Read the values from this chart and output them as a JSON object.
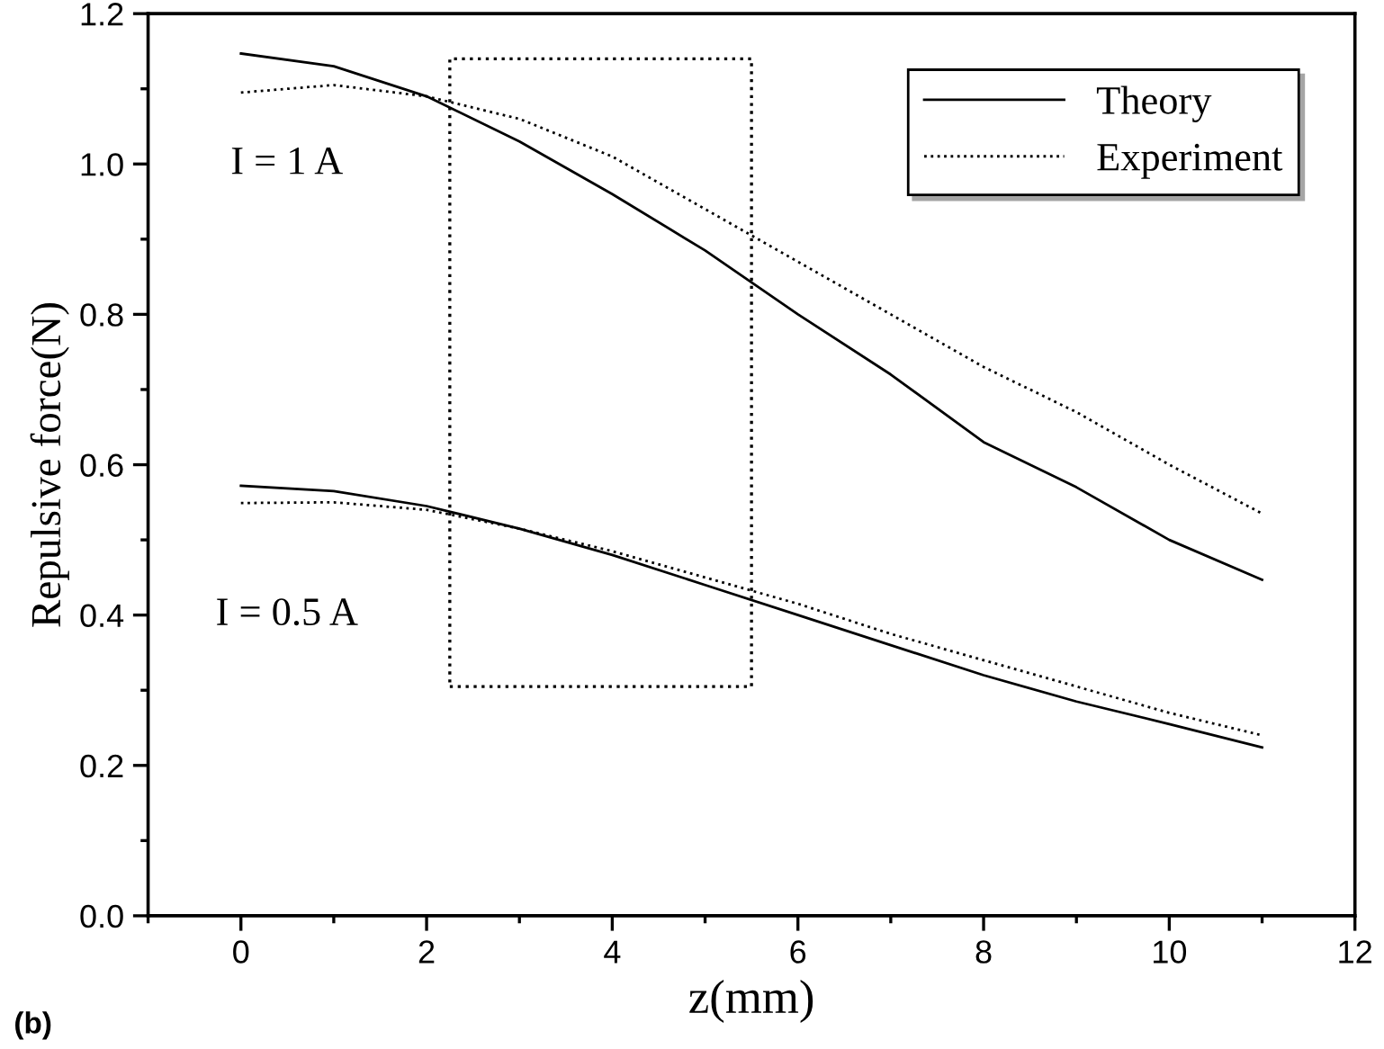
{
  "chart_data": {
    "type": "line",
    "xlabel": "z(mm)",
    "ylabel": "Repulsive force(N)",
    "xlim": [
      -1,
      12
    ],
    "xticks": [
      0,
      2,
      4,
      6,
      8,
      10,
      12
    ],
    "ylim": [
      0,
      1.2
    ],
    "yticks": [
      {
        "value": 0,
        "label": "0.0"
      },
      {
        "value": 0.2,
        "label": "0.2"
      },
      {
        "value": 0.4,
        "label": "0.4"
      },
      {
        "value": 0.6,
        "label": "0.6"
      },
      {
        "value": 0.8,
        "label": "0.8"
      },
      {
        "value": 1.0,
        "label": "1.0"
      },
      {
        "value": 1.2,
        "label": "1.2"
      }
    ],
    "x": [
      0,
      1,
      2,
      3,
      4,
      5,
      6,
      7,
      8,
      9,
      10,
      11
    ],
    "series": [
      {
        "name": "Theory",
        "color": "#000000",
        "line_style": "solid",
        "values": [
          1.147,
          1.13,
          1.09,
          1.03,
          0.96,
          0.885,
          0.8,
          0.72,
          0.63,
          0.57,
          0.5,
          0.447
        ]
      },
      {
        "name": "Experiment",
        "color": "#000000",
        "line_style": "dotted",
        "values": [
          1.095,
          1.105,
          1.09,
          1.06,
          1.01,
          0.94,
          0.87,
          0.8,
          0.73,
          0.67,
          0.6,
          0.535
        ]
      },
      {
        "color": "#000000",
        "line_style": "solid",
        "values": [
          0.572,
          0.565,
          0.545,
          0.515,
          0.48,
          0.44,
          0.4,
          0.36,
          0.32,
          0.285,
          0.255,
          0.224
        ]
      },
      {
        "color": "#000000",
        "line_style": "dotted",
        "values": [
          0.549,
          0.55,
          0.54,
          0.515,
          0.485,
          0.45,
          0.415,
          0.375,
          0.34,
          0.305,
          0.27,
          0.24
        ]
      }
    ],
    "annotations": [
      "I = 1 A",
      "I = 0.5 A",
      "(b)"
    ],
    "legend": "top right",
    "grid": false
  }
}
